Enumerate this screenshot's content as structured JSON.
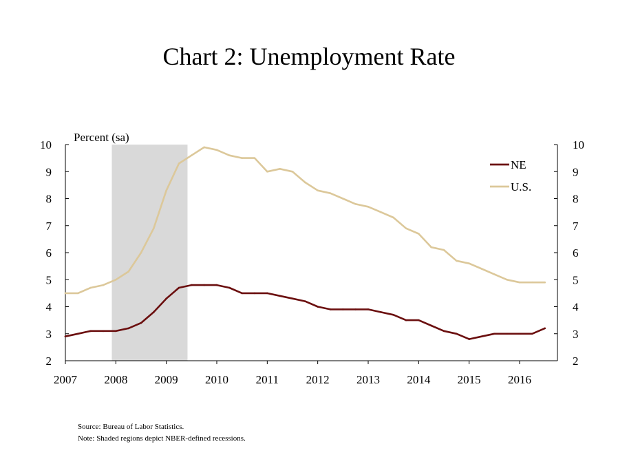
{
  "chart_data": {
    "type": "line",
    "title": "Chart 2: Unemployment Rate",
    "ylabel": "Percent (sa)",
    "xlabel": "",
    "ylim": [
      2,
      10
    ],
    "y_ticks": [
      "2",
      "3",
      "4",
      "5",
      "6",
      "7",
      "8",
      "9",
      "10"
    ],
    "y_ticks_right": [
      "2",
      "3",
      "4",
      "5",
      "6",
      "7",
      "8",
      "9",
      "10"
    ],
    "xlim": [
      2007,
      2016.75
    ],
    "x_ticks": [
      "2007",
      "2008",
      "2009",
      "2010",
      "2011",
      "2012",
      "2013",
      "2014",
      "2015",
      "2016"
    ],
    "grid": false,
    "legend": "top-right",
    "recessions": [
      {
        "start": 2007.92,
        "end": 2009.42
      }
    ],
    "x": [
      2007.0,
      2007.25,
      2007.5,
      2007.75,
      2008.0,
      2008.25,
      2008.5,
      2008.75,
      2009.0,
      2009.25,
      2009.5,
      2009.75,
      2010.0,
      2010.25,
      2010.5,
      2010.75,
      2011.0,
      2011.25,
      2011.5,
      2011.75,
      2012.0,
      2012.25,
      2012.5,
      2012.75,
      2013.0,
      2013.25,
      2013.5,
      2013.75,
      2014.0,
      2014.25,
      2014.5,
      2014.75,
      2015.0,
      2015.25,
      2015.5,
      2015.75,
      2016.0,
      2016.25,
      2016.5
    ],
    "series": [
      {
        "name": "NE",
        "color": "#6b0f0f",
        "values": [
          2.9,
          3.0,
          3.1,
          3.1,
          3.1,
          3.2,
          3.4,
          3.8,
          4.3,
          4.7,
          4.8,
          4.8,
          4.8,
          4.7,
          4.5,
          4.5,
          4.5,
          4.4,
          4.3,
          4.2,
          4.0,
          3.9,
          3.9,
          3.9,
          3.9,
          3.8,
          3.7,
          3.5,
          3.5,
          3.3,
          3.1,
          3.0,
          2.8,
          2.9,
          3.0,
          3.0,
          3.0,
          3.0,
          3.2
        ]
      },
      {
        "name": "U.S.",
        "color": "#dcc89a",
        "values": [
          4.5,
          4.5,
          4.7,
          4.8,
          5.0,
          5.3,
          6.0,
          6.9,
          8.3,
          9.3,
          9.6,
          9.9,
          9.8,
          9.6,
          9.5,
          9.5,
          9.0,
          9.1,
          9.0,
          8.6,
          8.3,
          8.2,
          8.0,
          7.8,
          7.7,
          7.5,
          7.3,
          6.9,
          6.7,
          6.2,
          6.1,
          5.7,
          5.6,
          5.4,
          5.2,
          5.0,
          4.9,
          4.9,
          4.9
        ]
      }
    ]
  },
  "notes": {
    "source": "Source: Bureau of Labor Statistics.",
    "note": "Note: Shaded regions depict NBER-defined recessions."
  }
}
